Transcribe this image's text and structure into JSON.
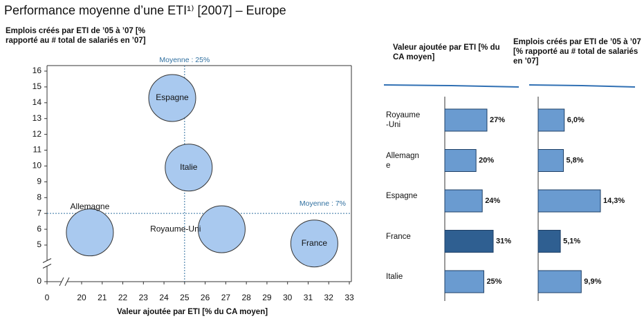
{
  "title": "Performance moyenne d’une ETI¹⁾ [2007] – Europe",
  "chart_data": [
    {
      "type": "scatter",
      "y_label": "Emplois créés par ETI de ’05 à ’07 [% rapporté au # total de salariés en ’07]",
      "x_label": "Valeur ajoutée par ETI [% du CA moyen]",
      "labels": [
        "Espagne",
        "Italie",
        "Royaume-Uni",
        "Allemagne",
        "France"
      ],
      "x": [
        24.4,
        25.2,
        26.8,
        20.4,
        31.3
      ],
      "values": [
        14.3,
        9.9,
        6.0,
        5.8,
        5.1
      ],
      "color": "#a9c9ef",
      "xlim": [
        0,
        33
      ],
      "xticks": [
        0,
        20,
        21,
        22,
        23,
        24,
        25,
        26,
        27,
        28,
        29,
        30,
        31,
        32,
        33
      ],
      "xbreak": [
        0,
        20
      ],
      "ylim": [
        0,
        16
      ],
      "yticks": [
        0,
        5,
        6,
        7,
        8,
        9,
        10,
        11,
        12,
        13,
        14,
        15,
        16
      ],
      "ybreak": [
        0,
        5
      ],
      "reference_lines": [
        {
          "axis": "x",
          "value": 25,
          "label": "Moyenne : 25%"
        },
        {
          "axis": "y",
          "value": 7,
          "label": "Moyenne : 7%"
        }
      ]
    },
    {
      "type": "bar",
      "title": "Valeur ajoutée par ETI [% du CA moyen]",
      "categories": [
        "Royaume-Uni",
        "Allemagne",
        "Espagne",
        "France",
        "Italie"
      ],
      "values": [
        27,
        20,
        24,
        31,
        25
      ],
      "value_labels": [
        "27%",
        "20%",
        "24%",
        "31%",
        "25%"
      ],
      "colors": [
        "#6a9bd0",
        "#6a9bd0",
        "#6a9bd0",
        "#2f5f91",
        "#6a9bd0"
      ]
    },
    {
      "type": "bar",
      "title": "Emplois créés par ETI de ’05 à ’07 [% rapporté au # total de salariés en ’07]",
      "values": [
        6.0,
        5.8,
        14.3,
        5.1,
        9.9
      ],
      "value_labels": [
        "6,0%",
        "5,8%",
        "14,3%",
        "5,1%",
        "9,9%"
      ],
      "colors": [
        "#6a9bd0",
        "#6a9bd0",
        "#6a9bd0",
        "#2f5f91",
        "#6a9bd0"
      ]
    }
  ]
}
